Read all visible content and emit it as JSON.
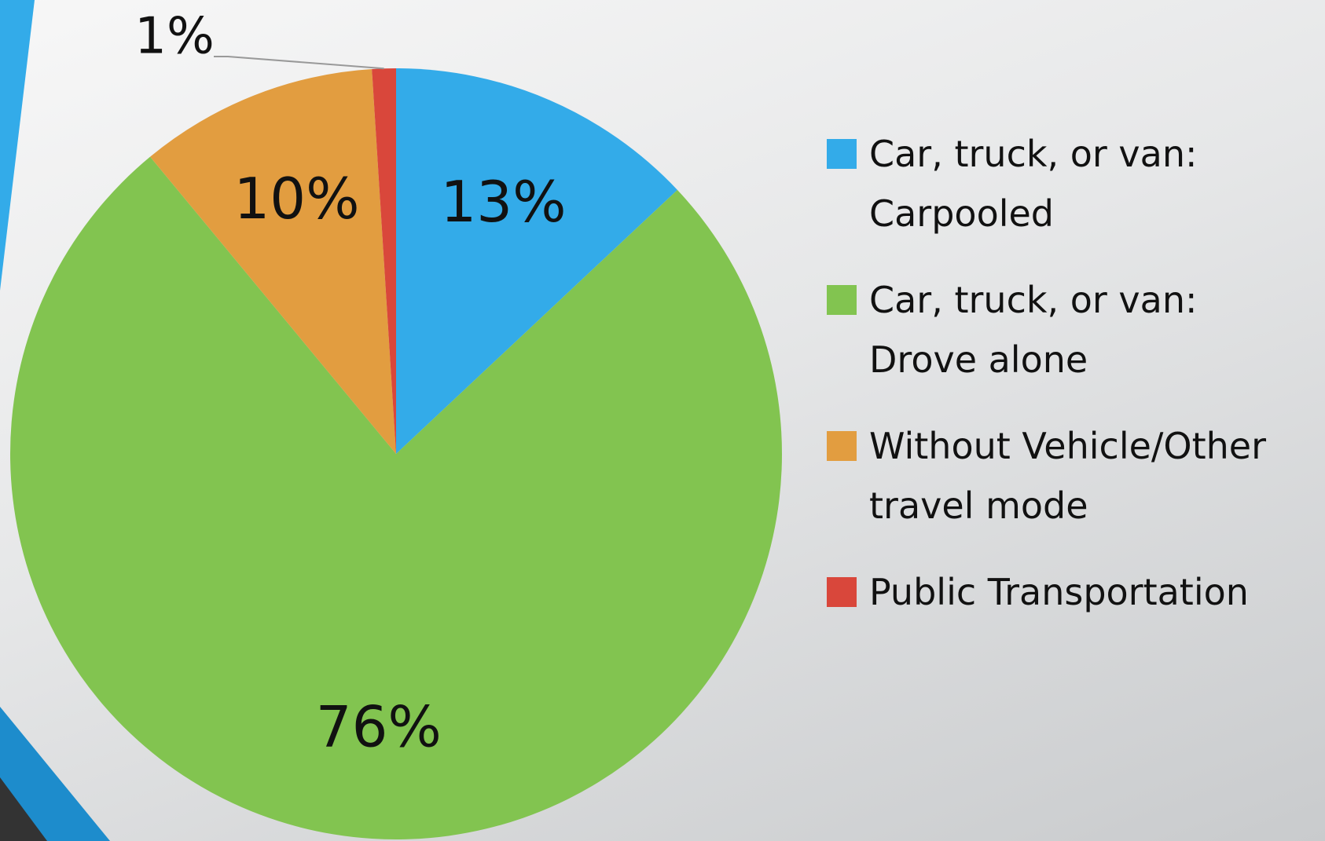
{
  "chart_data": {
    "type": "pie",
    "categories": [
      "Car, truck, or van: Carpooled",
      "Car, truck, or van: Drove alone",
      "Without Vehicle/Other travel mode",
      "Public Transportation"
    ],
    "values": [
      13,
      76,
      10,
      1
    ],
    "value_labels": [
      "13%",
      "76%",
      "10%",
      "1%"
    ],
    "colors": [
      "#33abe9",
      "#82c450",
      "#e29d40",
      "#d9473b"
    ],
    "legend": "right"
  }
}
